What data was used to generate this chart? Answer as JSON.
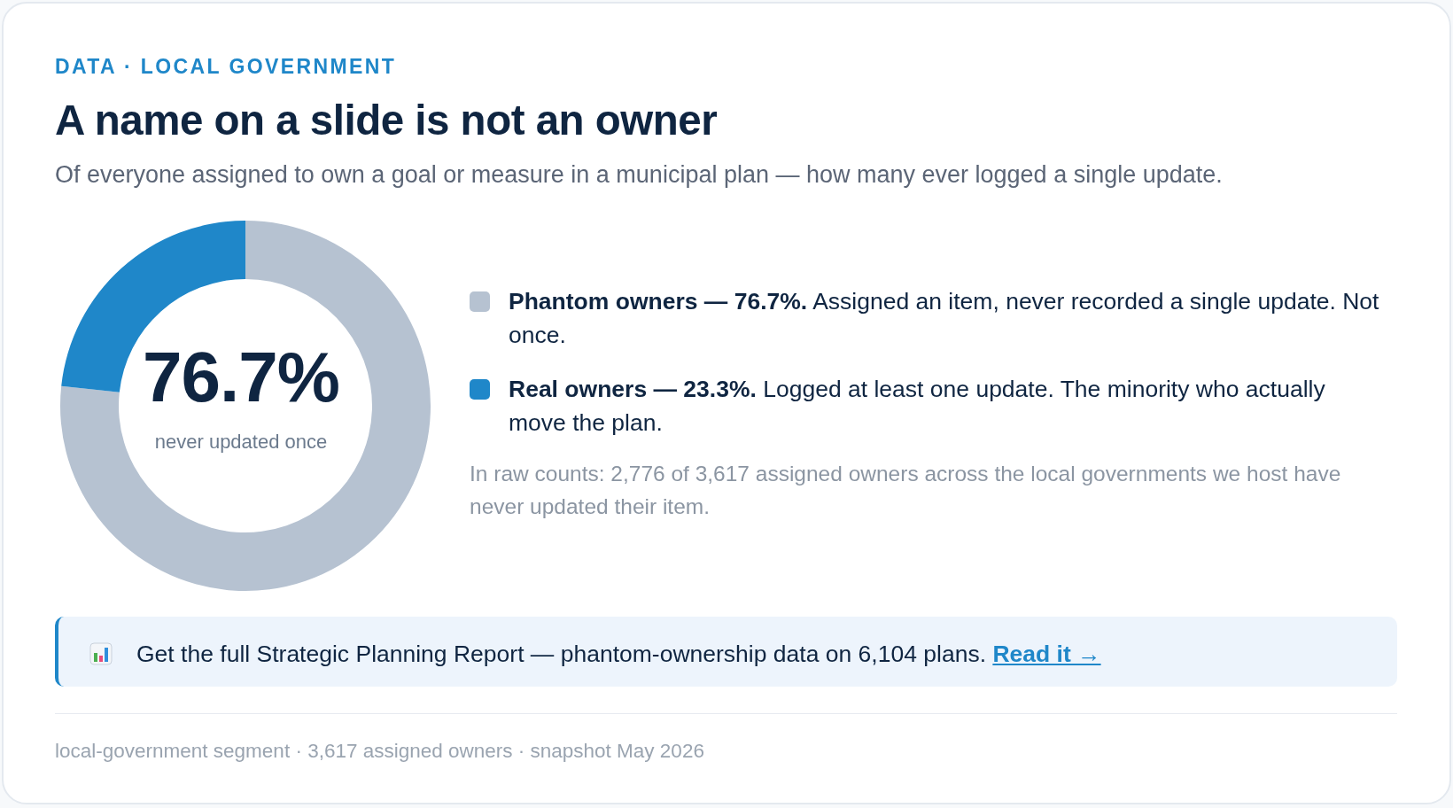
{
  "chart_data": {
    "type": "donut",
    "title": "A name on a slide is not an owner",
    "subtitle": "Of everyone assigned to own a goal or measure in a municipal plan — how many ever logged a single update.",
    "categories": [
      "Phantom owners — 76.7%.",
      "Real owners — 23.3%."
    ],
    "values": [
      76.7,
      23.3
    ],
    "colors": [
      "#b6c2d1",
      "#1f87c9"
    ],
    "legend": "right",
    "annotations": [
      "DATA · LOCAL GOVERNMENT",
      "76.7%",
      "never updated once",
      "Assigned an item, never recorded a single update. Not once.",
      "Logged at least one update. The minority who actually move the plan.",
      "In raw counts: 2,776 of 3,617 assigned owners across the local governments we host have never updated their item.",
      "Get the full Strategic Planning Report — phantom-ownership data on 6,104 plans.",
      "Read it →",
      "local-government segment · 3,617 assigned owners · snapshot May 2026"
    ]
  }
}
